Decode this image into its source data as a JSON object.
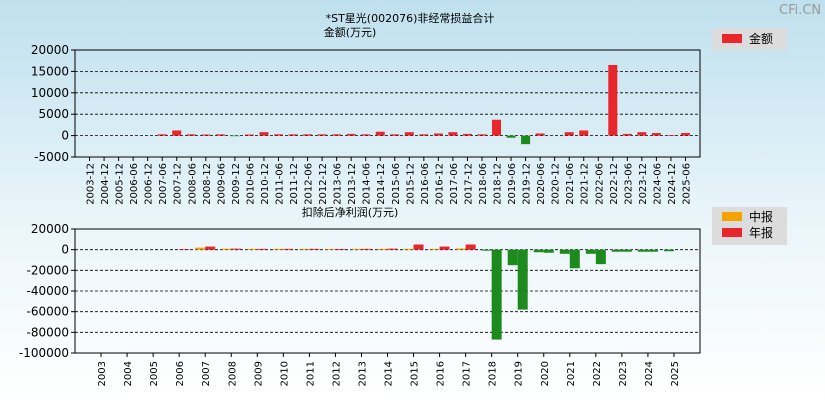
{
  "watermark": "CFi.CN",
  "colors": {
    "red": "#e8262b",
    "green": "#1d8a1d",
    "orange": "#f5a300",
    "grid": "#000000"
  },
  "chart_data": [
    {
      "type": "bar",
      "title": "*ST星光(002076)非经常损益合计",
      "ylabel": "金额(万元)",
      "ylim": [
        -5000,
        20000
      ],
      "yticks": [
        "20000",
        "15000",
        "10000",
        "5000",
        "0",
        "-5000"
      ],
      "legend": [
        {
          "name": "金额",
          "color": "red"
        }
      ],
      "legend_placement": "right",
      "grid": true,
      "categories": [
        "2003-12",
        "2004-12",
        "2005-12",
        "2006-06",
        "2006-12",
        "2007-06",
        "2007-12",
        "2008-06",
        "2008-12",
        "2009-06",
        "2009-12",
        "2010-06",
        "2010-12",
        "2011-06",
        "2011-12",
        "2012-06",
        "2012-12",
        "2013-06",
        "2013-12",
        "2014-06",
        "2014-12",
        "2015-06",
        "2015-12",
        "2016-06",
        "2016-12",
        "2017-06",
        "2017-12",
        "2018-06",
        "2018-12",
        "2019-06",
        "2019-12",
        "2020-06",
        "2020-12",
        "2021-06",
        "2021-12",
        "2022-06",
        "2022-12",
        "2023-06",
        "2023-12",
        "2024-06",
        "2024-12",
        "2025-06"
      ],
      "values": [
        0,
        0,
        0,
        0,
        0,
        300,
        1200,
        300,
        250,
        300,
        -100,
        250,
        800,
        300,
        300,
        300,
        300,
        300,
        400,
        300,
        900,
        300,
        800,
        300,
        500,
        800,
        400,
        300,
        3700,
        -500,
        -2000,
        500,
        0,
        800,
        1200,
        0,
        16500,
        400,
        800,
        600,
        100,
        600
      ]
    },
    {
      "type": "bar",
      "title": "扣除后净利润(万元)",
      "ylim": [
        -100000,
        20000
      ],
      "yticks": [
        "20000",
        "0",
        "-20000",
        "-40000",
        "-60000",
        "-80000",
        "-100000"
      ],
      "legend": [
        {
          "name": "中报",
          "color": "orange"
        },
        {
          "name": "年报",
          "color": "red"
        }
      ],
      "legend_placement": "right",
      "grid": true,
      "categories": [
        "2003",
        "2004",
        "2005",
        "2006",
        "2007",
        "2008",
        "2009",
        "2010",
        "2011",
        "2012",
        "2013",
        "2014",
        "2015",
        "2016",
        "2017",
        "2018",
        "2019",
        "2020",
        "2021",
        "2022",
        "2023",
        "2024",
        "2025"
      ],
      "series": [
        {
          "name": "中报",
          "values": [
            null,
            null,
            null,
            null,
            2000,
            1000,
            800,
            800,
            800,
            700,
            800,
            800,
            800,
            800,
            1200,
            -1000,
            -15000,
            -2500,
            -4000,
            -4000,
            -2000,
            -2000,
            -1500
          ]
        },
        {
          "name": "年报",
          "values": [
            null,
            null,
            null,
            500,
            3000,
            1000,
            800,
            800,
            800,
            700,
            800,
            1000,
            5000,
            3000,
            5000,
            -87000,
            -58000,
            -3000,
            -18000,
            -14000,
            -2000,
            -2000,
            null
          ]
        }
      ]
    }
  ]
}
